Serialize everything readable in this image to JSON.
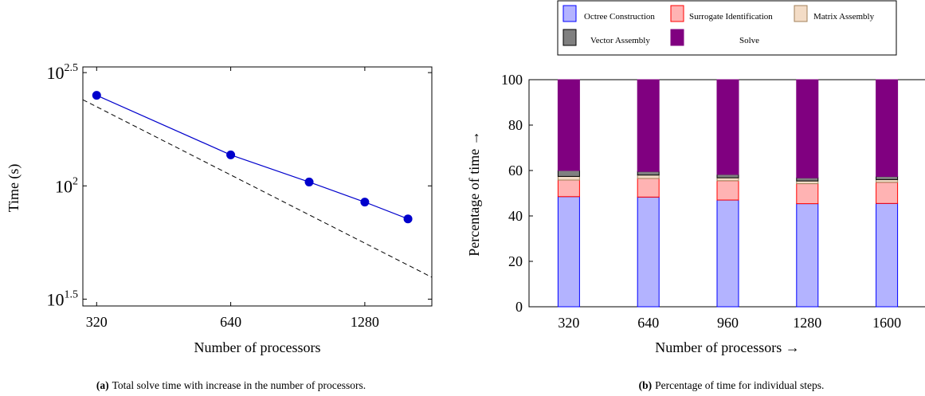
{
  "chart_data": [
    {
      "type": "line",
      "xlabel": "Number of processors",
      "ylabel": "Time (s)",
      "x_scale": "log",
      "y_scale": "log",
      "xlim": [
        298,
        1810
      ],
      "ylim": [
        29.5,
        335
      ],
      "x_ticks": [
        320,
        640,
        1280
      ],
      "x_tick_labels": [
        "320",
        "640",
        "1280"
      ],
      "y_ticks": [
        31.62,
        100,
        316.2
      ],
      "y_tick_labels": [
        {
          "base": "10",
          "exp": "1.5"
        },
        {
          "base": "10",
          "exp": "2"
        },
        {
          "base": "10",
          "exp": "2.5"
        }
      ],
      "series": [
        {
          "style": "solid-with-markers",
          "color": "#0000cc",
          "x": [
            320,
            640,
            960,
            1280,
            1600
          ],
          "y": [
            251,
            137,
            104,
            84.8,
            71.5
          ]
        },
        {
          "style": "dashed",
          "color": "#000000",
          "x": [
            298,
            1810
          ],
          "y": [
            240,
            39.5
          ]
        }
      ],
      "caption_label": "(a)",
      "caption_text": "Total solve time with increase in the number of processors."
    },
    {
      "type": "bar",
      "stacked": true,
      "xlabel": "Number of processors →",
      "ylabel": "Percentage of time →",
      "categories": [
        "320",
        "640",
        "960",
        "1280",
        "1600"
      ],
      "ylim": [
        0,
        100
      ],
      "y_ticks": [
        0,
        20,
        40,
        60,
        80,
        100
      ],
      "legend_position": "top",
      "series": [
        {
          "name": "Octree Construction",
          "color": "#b3b3ff",
          "edge": "#0000ff",
          "values": [
            48.5,
            48.3,
            47.0,
            45.4,
            45.5
          ]
        },
        {
          "name": "Surrogate Identification",
          "color": "#ffb3b3",
          "edge": "#ff0000",
          "values": [
            7.3,
            8.2,
            8.5,
            8.8,
            9.3
          ]
        },
        {
          "name": "Matrix Assembly",
          "color": "#f3dcc6",
          "edge": "#a0805a",
          "values": [
            1.6,
            1.5,
            1.3,
            1.2,
            1.2
          ]
        },
        {
          "name": "Vector Assembly",
          "color": "#808080",
          "edge": "#000000",
          "values": [
            2.6,
            1.6,
            1.5,
            1.4,
            1.4
          ]
        },
        {
          "name": "Solve",
          "color": "#800080",
          "edge": "#800080",
          "values": [
            40.0,
            40.4,
            41.7,
            43.2,
            42.6
          ]
        }
      ],
      "caption_label": "(b)",
      "caption_text": "Percentage of time for individual steps."
    }
  ]
}
